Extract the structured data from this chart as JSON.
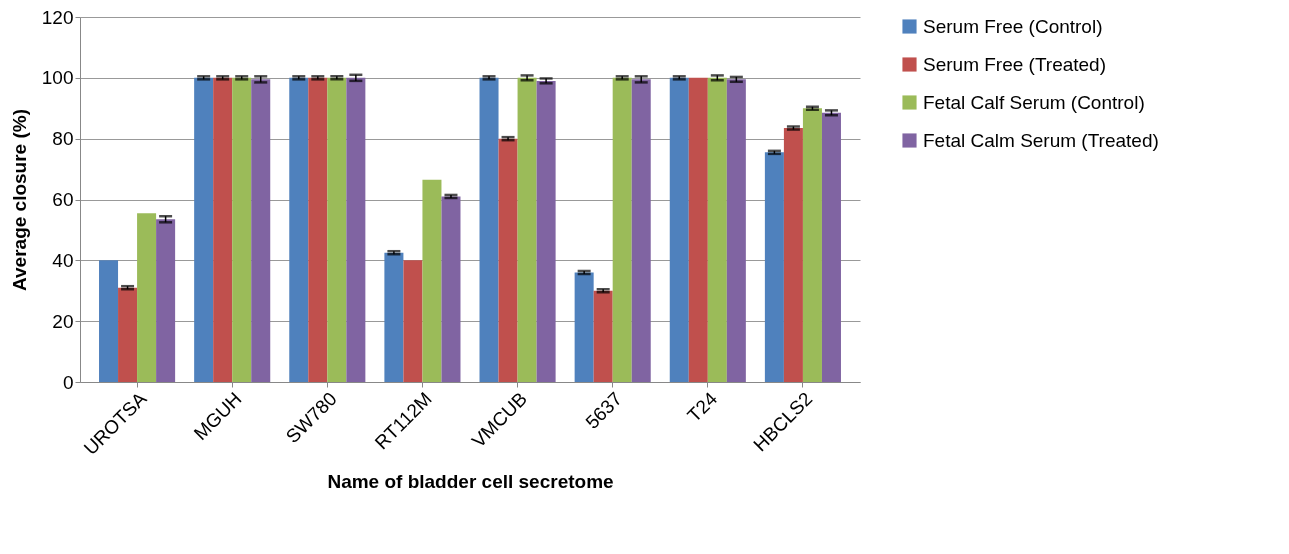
{
  "chart_data": {
    "type": "bar",
    "xlabel": "Name of bladder cell secretome",
    "ylabel": "Average closure (%)",
    "categories": [
      "UROTSA",
      "MGUH",
      "SW780",
      "RT112M",
      "VMCUB",
      "5637",
      "T24",
      "HBCLS2"
    ],
    "series": [
      {
        "name": "Serum Free (Control)",
        "color": "#4f81bd",
        "values": [
          40,
          100,
          100,
          42.5,
          100,
          36,
          100,
          75.5
        ],
        "errors": [
          null,
          0.5,
          0.5,
          0.5,
          0.5,
          0.5,
          0.5,
          0.5
        ]
      },
      {
        "name": "Serum Free (Treated)",
        "color": "#c0504d",
        "values": [
          31,
          100,
          100,
          40,
          80,
          30,
          100,
          83.5
        ],
        "errors": [
          0.5,
          0.5,
          0.5,
          null,
          0.5,
          0.5,
          null,
          0.5
        ]
      },
      {
        "name": "Fetal Calf Serum (Control)",
        "color": "#9bbb59",
        "values": [
          55.5,
          100,
          100,
          66.5,
          100,
          100,
          100,
          90
        ],
        "errors": [
          null,
          0.5,
          0.5,
          null,
          0.8,
          0.5,
          0.8,
          0.5
        ]
      },
      {
        "name": "Fetal Calm Serum (Treated)",
        "color": "#8064a2",
        "values": [
          53.5,
          99.5,
          100,
          61,
          99,
          99.5,
          99.5,
          88.5
        ],
        "errors": [
          1,
          1,
          1,
          0.5,
          0.8,
          1,
          0.8,
          0.8
        ]
      }
    ],
    "ylim": [
      0,
      120
    ],
    "yticks": [
      0,
      20,
      40,
      60,
      80,
      100,
      120
    ],
    "grid": "y",
    "legend": "right"
  }
}
